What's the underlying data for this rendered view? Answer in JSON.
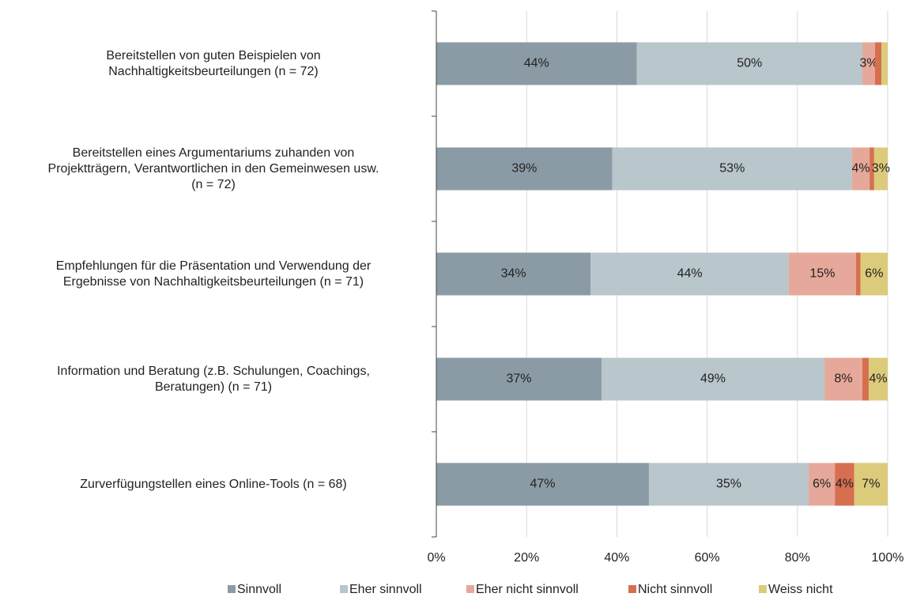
{
  "chart_data": {
    "type": "stacked-bar-horizontal",
    "categories": [
      "Bereitstellen von guten Beispielen von\nNachhaltigkeitsbeurteilungen (n = 72)",
      "Bereitstellen eines Argumentariums zuhanden von\nProjektträgern, Verantwortlichen in den Gemeinwesen usw.\n(n = 72)",
      "Empfehlungen für die Präsentation und Verwendung der\nErgebnisse von Nachhaltigkeitsbeurteilungen (n = 71)",
      "Information und Beratung (z.B. Schulungen, Coachings,\nBeratungen) (n = 71)",
      "Zurverfügungstellen eines Online-Tools (n = 68)"
    ],
    "series": [
      {
        "name": "Sinnvoll",
        "color": "#8a9ba5",
        "values": [
          44.4,
          39.0,
          34.2,
          36.6,
          47.1
        ],
        "value_labels": [
          "44%",
          "39%",
          "34%",
          "37%",
          "47%"
        ]
      },
      {
        "name": "Eher sinnvoll",
        "color": "#b9c6cc",
        "values": [
          50.0,
          53.1,
          43.9,
          49.4,
          35.4
        ],
        "value_labels": [
          "50%",
          "53%",
          "44%",
          "49%",
          "35%"
        ]
      },
      {
        "name": "Eher nicht sinnvoll",
        "color": "#e6a89a",
        "values": [
          2.8,
          3.9,
          14.9,
          8.4,
          5.8
        ],
        "value_labels": [
          "3%",
          "4%",
          "15%",
          "8%",
          "6%"
        ]
      },
      {
        "name": "Nicht sinnvoll",
        "color": "#d66f50",
        "values": [
          1.4,
          1.0,
          1.0,
          1.4,
          4.3
        ],
        "value_labels": [
          null,
          null,
          null,
          null,
          "4%"
        ]
      },
      {
        "name": "Weiss nicht",
        "color": "#dccb7a",
        "values": [
          1.4,
          3.0,
          6.0,
          4.2,
          7.4
        ],
        "value_labels": [
          null,
          "3%",
          "6%",
          "4%",
          "7%"
        ]
      }
    ],
    "xlim": [
      0,
      100
    ],
    "xticks": [
      {
        "value": 0,
        "label": "0%"
      },
      {
        "value": 20,
        "label": "20%"
      },
      {
        "value": 40,
        "label": "40%"
      },
      {
        "value": 60,
        "label": "60%"
      },
      {
        "value": 80,
        "label": "80%"
      },
      {
        "value": 100,
        "label": "100%"
      }
    ],
    "grid": true,
    "legend": "bottom"
  }
}
